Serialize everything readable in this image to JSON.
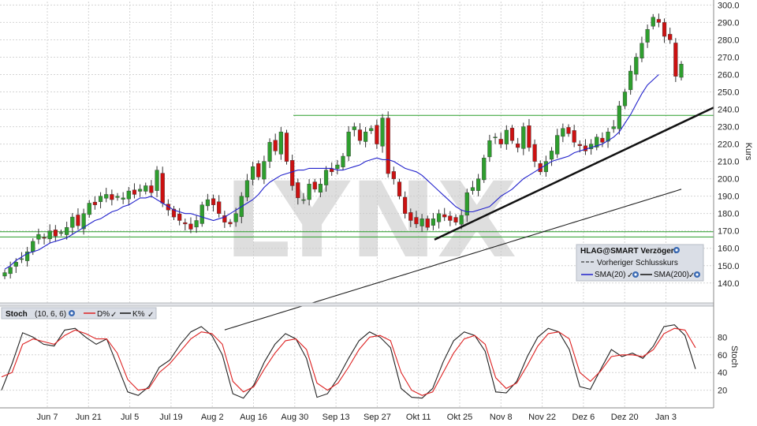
{
  "chart_data": [
    {
      "type": "candlestick",
      "title": "",
      "ylabel": "Kurs",
      "ylim": [
        129,
        302
      ],
      "y_ticks": [
        140,
        150,
        160,
        170,
        180,
        190,
        200,
        210,
        220,
        230,
        240,
        250,
        260,
        270,
        280,
        290,
        300
      ],
      "y_tick_labels": [
        "140.0",
        "150.0",
        "160.0",
        "170.0",
        "180.0",
        "190.0",
        "200.0",
        "210.0",
        "220.0",
        "230.0",
        "240.0",
        "250.0",
        "260.0",
        "270.0",
        "280.0",
        "290.0",
        "300.0"
      ],
      "x_labels": [
        "Jun 7",
        "Jun 21",
        "Jul 5",
        "Jul 19",
        "Aug 2",
        "Aug 16",
        "Aug 30",
        "Sep 13",
        "Sep 27",
        "Okt 11",
        "Okt 25",
        "Nov 8",
        "Nov 22",
        "Dez 6",
        "Dez 20",
        "Jan 3"
      ],
      "close": [
        146,
        149,
        152,
        154,
        158,
        164,
        168,
        166,
        170,
        167,
        169,
        172,
        178,
        173,
        180,
        186,
        185,
        190,
        191,
        188,
        190,
        189,
        193,
        191,
        194,
        196,
        192,
        205,
        186,
        182,
        178,
        176,
        174,
        171,
        176,
        185,
        188,
        185,
        180,
        175,
        174,
        180,
        190,
        199,
        207,
        201,
        210,
        221,
        216,
        227,
        210,
        196,
        189,
        188,
        197,
        194,
        197,
        205,
        204,
        208,
        213,
        227,
        230,
        222,
        227,
        229,
        220,
        235,
        203,
        200,
        190,
        180,
        176,
        174,
        177,
        172,
        177,
        180,
        178,
        176,
        175,
        179,
        192,
        195,
        200,
        212,
        222,
        224,
        220,
        228,
        222,
        218,
        230,
        218,
        210,
        204,
        210,
        216,
        225,
        229,
        226,
        221,
        219,
        216,
        220,
        224,
        221,
        227,
        230,
        242,
        250,
        262,
        270,
        278,
        286,
        293,
        290,
        282,
        280,
        259,
        266
      ],
      "sma20": [
        148,
        150,
        153,
        155,
        157,
        158,
        159,
        161,
        163,
        164,
        165,
        166,
        168,
        170,
        172,
        174,
        176,
        177,
        179,
        181,
        182,
        184,
        185,
        187,
        189,
        189,
        190,
        188,
        186,
        184,
        182,
        181,
        180,
        180,
        179,
        178,
        177,
        176,
        177,
        178,
        180,
        182,
        184,
        186,
        188,
        191,
        195,
        198,
        200,
        202,
        203,
        204,
        205,
        205,
        206,
        206,
        206,
        206,
        206,
        205,
        205,
        206,
        207,
        208,
        210,
        211,
        212,
        211,
        211,
        210,
        208,
        206,
        205,
        204,
        202,
        199,
        196,
        193,
        190,
        187,
        184,
        182,
        181,
        181,
        182,
        183,
        184,
        187,
        190,
        192,
        194,
        197,
        200,
        202,
        204,
        206,
        208,
        210,
        211,
        212,
        213,
        215,
        216,
        217,
        218,
        219,
        220,
        222,
        224,
        227,
        232,
        237,
        243,
        249,
        254,
        257,
        260
      ],
      "sma200": [
        113,
        114,
        115,
        116,
        117,
        118,
        119,
        120,
        121,
        122,
        123,
        124,
        125,
        126,
        127,
        128,
        129,
        130,
        131,
        132,
        133,
        134,
        135,
        136,
        137,
        138,
        139,
        140,
        141,
        142,
        143,
        144,
        145,
        146,
        147,
        148,
        149,
        150,
        151,
        152,
        153,
        154,
        155,
        156,
        157,
        158,
        159,
        160,
        161,
        162,
        163,
        164,
        165,
        166,
        167,
        168,
        169,
        170,
        171,
        172,
        173,
        174,
        175,
        176,
        177,
        178,
        179,
        180,
        181,
        182,
        183,
        184,
        185,
        186,
        187,
        188,
        189,
        190,
        191,
        192,
        193,
        194
      ],
      "horizontal_lines": [
        236.5,
        169.5,
        166.5
      ],
      "trendline": [
        165,
        241
      ],
      "legend": {
        "title": "HLAG@SMART Verzögert",
        "items": [
          "Vorheriger Schlusskurs",
          "SMA(20)",
          "SMA(200)"
        ]
      }
    },
    {
      "type": "line",
      "title": "Stoch",
      "params": "(10, 6, 6)",
      "ylim": [
        0,
        100
      ],
      "y_ticks": [
        20,
        40,
        60,
        80
      ],
      "ylabel": "Stoch",
      "legend": [
        "D%",
        "K%"
      ],
      "series": [
        {
          "name": "K%",
          "values": [
            20,
            50,
            85,
            80,
            72,
            70,
            88,
            90,
            80,
            72,
            78,
            48,
            18,
            14,
            24,
            46,
            54,
            72,
            86,
            92,
            82,
            60,
            16,
            11,
            26,
            52,
            72,
            84,
            78,
            56,
            12,
            16,
            34,
            56,
            76,
            86,
            80,
            68,
            22,
            12,
            11,
            22,
            52,
            76,
            86,
            82,
            64,
            18,
            17,
            30,
            58,
            80,
            90,
            86,
            66,
            24,
            21,
            44,
            66,
            58,
            62,
            56,
            70,
            92,
            94,
            82,
            44
          ]
        },
        {
          "name": "D%",
          "values": [
            35,
            40,
            72,
            78,
            75,
            72,
            82,
            88,
            84,
            78,
            78,
            62,
            32,
            20,
            22,
            40,
            50,
            64,
            78,
            86,
            84,
            72,
            30,
            18,
            24,
            44,
            62,
            76,
            78,
            66,
            28,
            20,
            28,
            46,
            66,
            80,
            82,
            76,
            40,
            20,
            14,
            18,
            40,
            62,
            78,
            82,
            72,
            34,
            22,
            28,
            48,
            70,
            84,
            86,
            78,
            40,
            30,
            42,
            58,
            60,
            60,
            58,
            66,
            84,
            90,
            88,
            68
          ]
        }
      ]
    }
  ],
  "colors": {
    "up": "#2e9e2e",
    "down": "#cc1111",
    "sma20": "#2222cc",
    "sma200": "#222222",
    "hline": "#2a9d2a",
    "stoch_k": "#222222",
    "stoch_d": "#dd2222"
  },
  "watermark": "LYNX",
  "icons": {
    "settings": "globe-icon",
    "check": "check-icon"
  }
}
